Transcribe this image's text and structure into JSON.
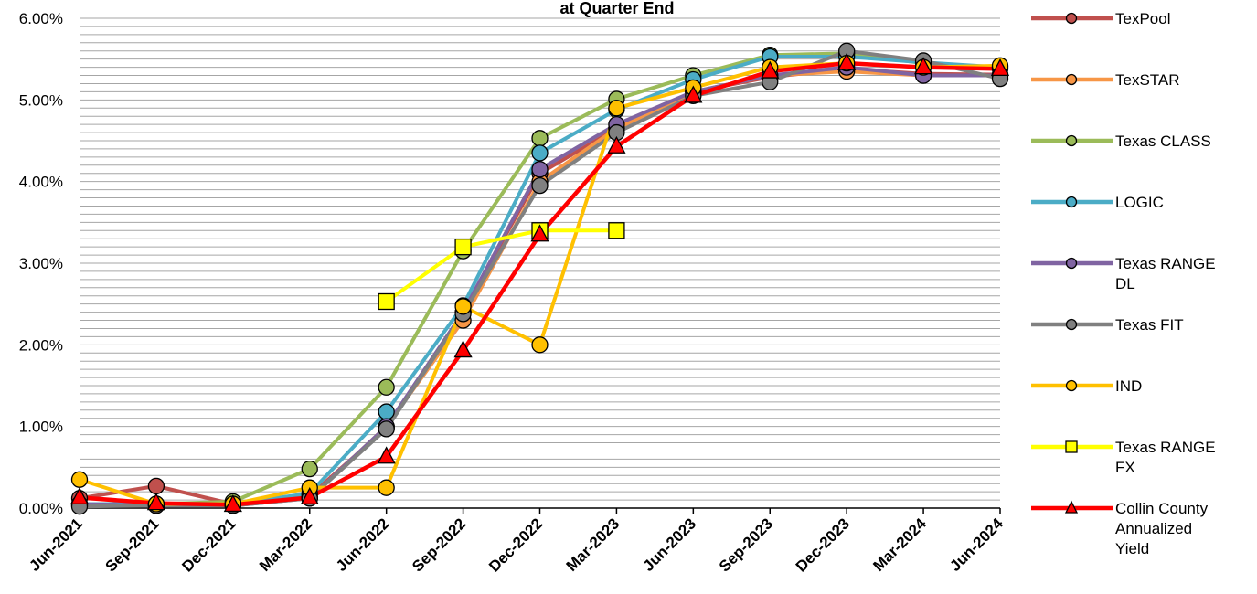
{
  "chart_data": {
    "type": "line",
    "title": "at Quarter End",
    "xlabel": "",
    "ylabel": "",
    "ylim": [
      0,
      0.06
    ],
    "y_tick_values": [
      0,
      0.01,
      0.02,
      0.03,
      0.04,
      0.05,
      0.06
    ],
    "y_tick_labels": [
      "0.00%",
      "1.00%",
      "2.00%",
      "3.00%",
      "4.00%",
      "5.00%",
      "6.00%"
    ],
    "grid": true,
    "legend_position": "right",
    "categories": [
      "Jun-2021",
      "Sep-2021",
      "Dec-2021",
      "Mar-2022",
      "Jun-2022",
      "Sep-2022",
      "Dec-2022",
      "Mar-2023",
      "Jun-2023",
      "Sep-2023",
      "Dec-2023",
      "Mar-2024",
      "Jun-2024"
    ],
    "series": [
      {
        "name": "TexPool",
        "color": "#C0504D",
        "marker": "circle",
        "values": [
          0.0012,
          0.0027,
          0.0005,
          0.0015,
          0.0098,
          0.024,
          0.041,
          0.0465,
          0.051,
          0.0528,
          0.0538,
          0.0532,
          0.0531
        ]
      },
      {
        "name": "TexSTAR",
        "color": "#F79646",
        "marker": "circle",
        "values": [
          0.0003,
          0.0003,
          0.0003,
          0.0012,
          0.01,
          0.023,
          0.04,
          0.0465,
          0.051,
          0.053,
          0.0535,
          0.053,
          0.053
        ]
      },
      {
        "name": "Texas CLASS",
        "color": "#9BBB59",
        "marker": "circle",
        "values": [
          0.0005,
          0.0005,
          0.0008,
          0.0048,
          0.0148,
          0.0315,
          0.0453,
          0.0501,
          0.053,
          0.0555,
          0.0557,
          0.0545,
          0.0538
        ]
      },
      {
        "name": "LOGIC",
        "color": "#4BACC6",
        "marker": "circle",
        "values": [
          0.0005,
          0.0005,
          0.0005,
          0.0018,
          0.0118,
          0.0248,
          0.0435,
          0.0488,
          0.0525,
          0.0553,
          0.0553,
          0.0546,
          0.054
        ]
      },
      {
        "name": "Texas RANGE DL",
        "color": "#8064A2",
        "marker": "circle",
        "values": [
          0.0005,
          0.0003,
          0.0003,
          0.0012,
          0.01,
          0.024,
          0.0415,
          0.047,
          0.051,
          0.053,
          0.054,
          0.053,
          0.053
        ]
      },
      {
        "name": "Texas FIT",
        "color": "#808080",
        "marker": "circle",
        "values": [
          0.0002,
          0.0003,
          0.0003,
          0.0012,
          0.0097,
          0.0238,
          0.0395,
          0.046,
          0.0505,
          0.0522,
          0.056,
          0.0548,
          0.0526
        ]
      },
      {
        "name": "IND",
        "color": "#FFC000",
        "marker": "circle",
        "values": [
          0.0035,
          0.0005,
          0.0005,
          0.0025,
          0.0025,
          0.0247,
          0.02,
          0.049,
          0.0515,
          0.054,
          0.0545,
          0.054,
          0.0542
        ]
      },
      {
        "name": "Texas RANGE FX",
        "color": "#FFFF00",
        "marker": "square",
        "values": [
          null,
          null,
          null,
          null,
          0.0253,
          0.032,
          0.034,
          0.034,
          null,
          null,
          null,
          null,
          null
        ]
      },
      {
        "name": "Collin County Annualized Yield",
        "color": "#FF0000",
        "marker": "triangle",
        "values": [
          0.0013,
          0.0006,
          0.0004,
          0.0013,
          0.0063,
          0.0193,
          0.0335,
          0.0443,
          0.0505,
          0.0535,
          0.0545,
          0.054,
          0.0538
        ]
      }
    ]
  }
}
